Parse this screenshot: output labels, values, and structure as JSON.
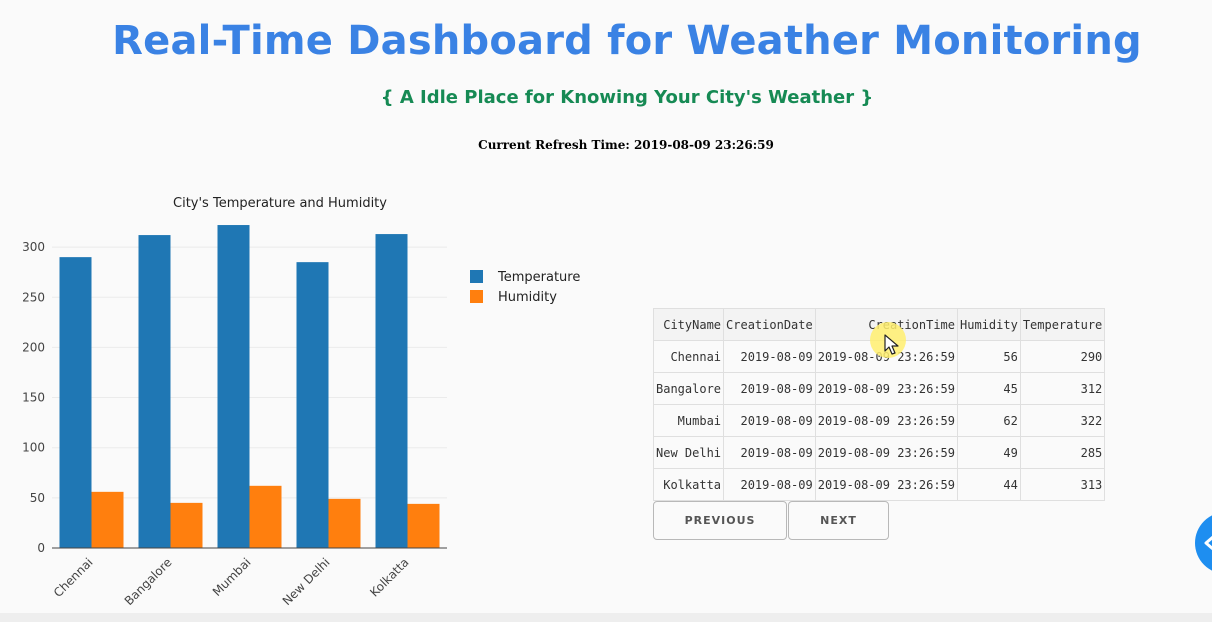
{
  "header": {
    "title": "Real-Time Dashboard for Weather Monitoring",
    "subtitle": "{ A Idle Place for Knowing Your City's Weather }",
    "refresh_label": "Current Refresh Time: 2019-08-09 23:26:59"
  },
  "chart_data": {
    "type": "bar",
    "title": "City's Temperature and Humidity",
    "categories": [
      "Chennai",
      "Bangalore",
      "Mumbai",
      "New Delhi",
      "Kolkatta"
    ],
    "series": [
      {
        "name": "Temperature",
        "color": "#1f77b4",
        "values": [
          290,
          312,
          322,
          285,
          313
        ]
      },
      {
        "name": "Humidity",
        "color": "#ff7f0e",
        "values": [
          56,
          45,
          62,
          49,
          44
        ]
      }
    ],
    "yticks": [
      0,
      50,
      100,
      150,
      200,
      250,
      300
    ],
    "ylim": [
      0,
      335
    ],
    "legend": "top-right",
    "xlabel": "",
    "ylabel": ""
  },
  "table": {
    "columns": [
      "CityName",
      "CreationDate",
      "CreationTime",
      "Humidity",
      "Temperature"
    ],
    "rows": [
      [
        "Chennai",
        "2019-08-09",
        "2019-08-09 23:26:59",
        "56",
        "290"
      ],
      [
        "Bangalore",
        "2019-08-09",
        "2019-08-09 23:26:59",
        "45",
        "312"
      ],
      [
        "Mumbai",
        "2019-08-09",
        "2019-08-09 23:26:59",
        "62",
        "322"
      ],
      [
        "New Delhi",
        "2019-08-09",
        "2019-08-09 23:26:59",
        "49",
        "285"
      ],
      [
        "Kolkatta",
        "2019-08-09",
        "2019-08-09 23:26:59",
        "44",
        "313"
      ]
    ]
  },
  "pager": {
    "previous_label": "PREVIOUS",
    "next_label": "NEXT"
  },
  "icons": {
    "cursor": "mouse-pointer-icon",
    "fab": "chevron-left-icon"
  }
}
